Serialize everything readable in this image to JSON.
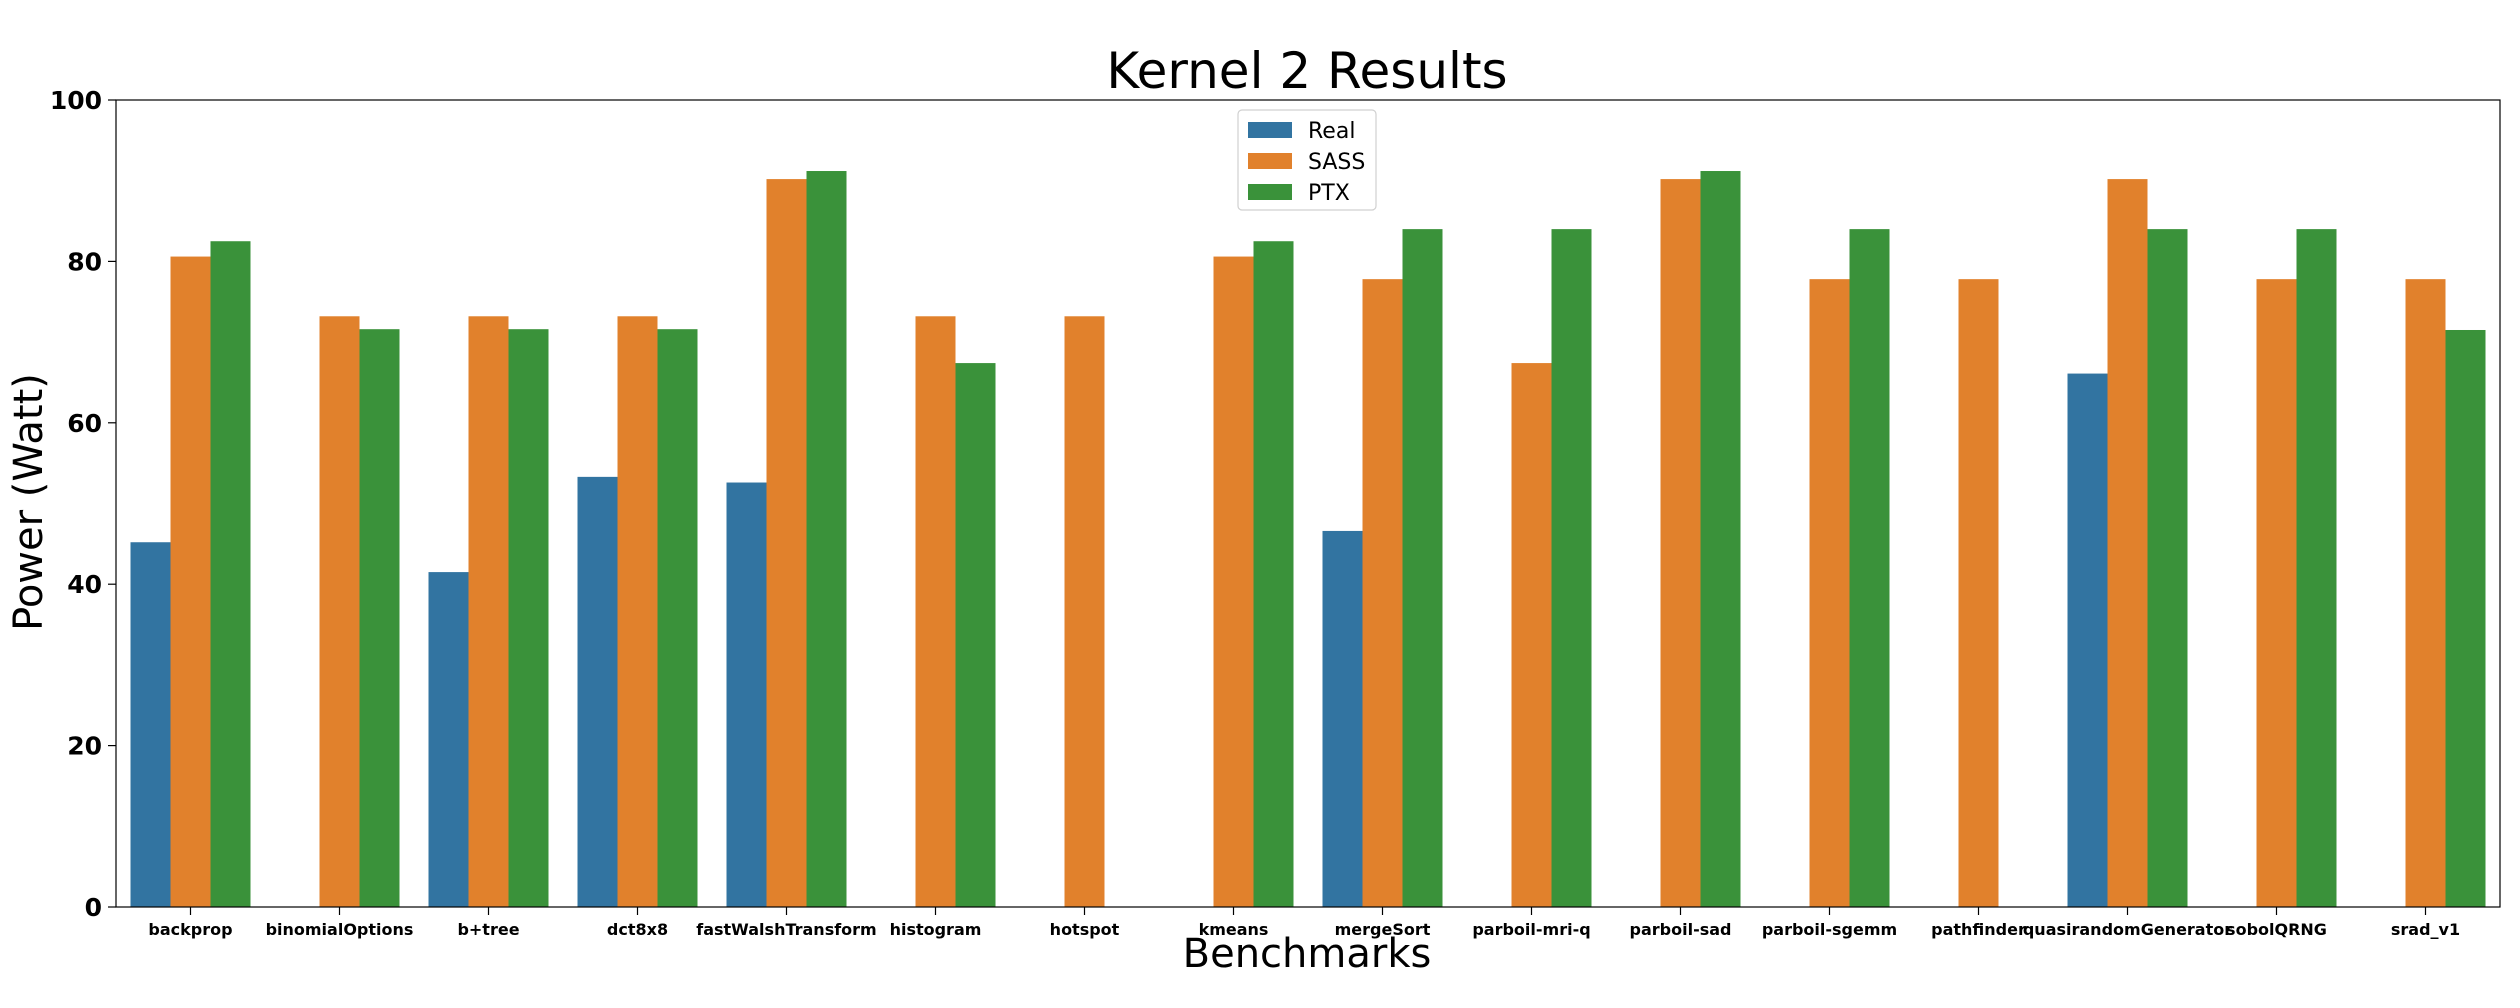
{
  "chart_data": {
    "type": "bar",
    "title": "Kernel 2 Results",
    "xlabel": "Benchmarks",
    "ylabel": "Power (Watt)",
    "ylim": [
      0,
      100
    ],
    "yticks": [
      "0",
      "20",
      "40",
      "60",
      "80",
      "100"
    ],
    "grid": false,
    "legend_position": "top-center",
    "categories": [
      "backprop",
      "binomialOptions",
      "b+tree",
      "dct8x8",
      "fastWalshTransform",
      "histogram",
      "hotspot",
      "kmeans",
      "mergeSort",
      "parboil-mri-q",
      "parboil-sad",
      "parboil-sgemm",
      "pathfinder",
      "quasirandomGenerator",
      "sobolQRNG",
      "srad_v1"
    ],
    "series": [
      {
        "name": "Real",
        "color": "#3274a1",
        "values": [
          45.2,
          null,
          41.5,
          53.3,
          52.6,
          null,
          null,
          null,
          46.6,
          null,
          null,
          null,
          null,
          66.1,
          null,
          null
        ]
      },
      {
        "name": "SASS",
        "color": "#e1812c",
        "values": [
          80.6,
          73.2,
          73.2,
          73.2,
          90.2,
          73.2,
          73.2,
          80.6,
          77.8,
          67.4,
          90.2,
          77.8,
          77.8,
          90.2,
          77.8,
          77.8
        ]
      },
      {
        "name": "PTX",
        "color": "#3a923a",
        "values": [
          82.5,
          71.6,
          71.6,
          71.6,
          91.2,
          67.4,
          null,
          82.5,
          84.0,
          84.0,
          91.2,
          84.0,
          null,
          84.0,
          84.0,
          71.5
        ]
      }
    ]
  }
}
